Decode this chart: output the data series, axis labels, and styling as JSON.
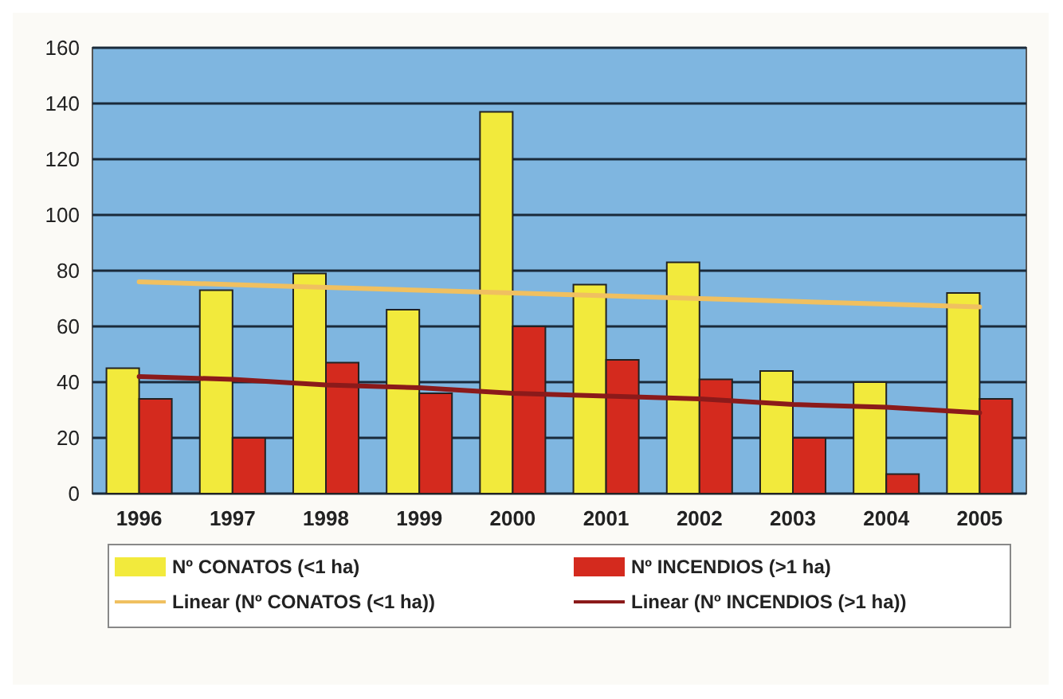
{
  "chart_data": {
    "type": "bar",
    "categories": [
      "1996",
      "1997",
      "1998",
      "1999",
      "2000",
      "2001",
      "2002",
      "2003",
      "2004",
      "2005"
    ],
    "series": [
      {
        "name": "Nº CONATOS (<1 ha)",
        "color": "#f2ea3c",
        "values": [
          45,
          73,
          79,
          66,
          137,
          75,
          83,
          44,
          40,
          72
        ]
      },
      {
        "name": "Nº INCENDIOS (>1 ha)",
        "color": "#d42a1e",
        "values": [
          34,
          20,
          47,
          36,
          60,
          48,
          41,
          20,
          7,
          34
        ]
      },
      {
        "name": "Linear (Nº CONATOS (<1 ha))",
        "type": "line",
        "color": "#f0c060",
        "values": [
          76,
          75,
          74,
          73,
          72,
          71,
          70,
          69,
          68,
          67
        ]
      },
      {
        "name": "Linear (Nº INCENDIOS (>1 ha))",
        "type": "line",
        "color": "#8b1a1a",
        "values": [
          42,
          41,
          39,
          38,
          36,
          35,
          34,
          32,
          31,
          29
        ]
      }
    ],
    "ylim": [
      0,
      160
    ],
    "yticks": [
      0,
      20,
      40,
      60,
      80,
      100,
      120,
      140,
      160
    ],
    "grid": "y",
    "legend": "bottom"
  }
}
